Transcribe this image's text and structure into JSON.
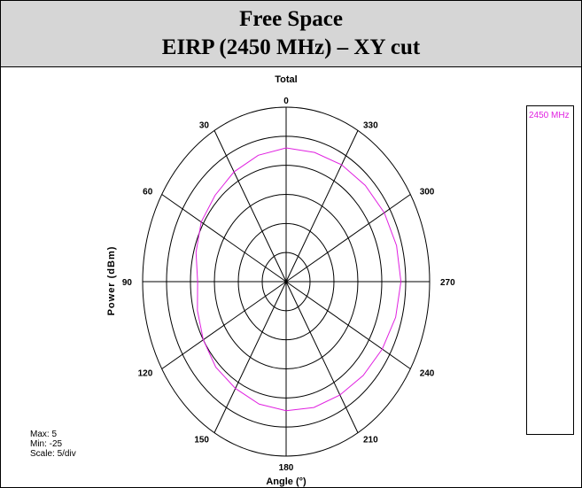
{
  "header": {
    "line1": "Free Space",
    "line2": "EIRP (2450 MHz) – XY cut"
  },
  "chart_data": {
    "type": "polar-line",
    "title": "Total",
    "xlabel": "Angle (°)",
    "ylabel": "Power (dBm)",
    "angle_ticks": [
      "0",
      "30",
      "60",
      "90",
      "120",
      "150",
      "180",
      "210",
      "240",
      "270",
      "300",
      "330"
    ],
    "angle_direction": "counterclockwise",
    "radial_range": [
      -25,
      5
    ],
    "radial_step": 5,
    "grid": true,
    "legend_position": "right",
    "series": [
      {
        "name": "2450 MHz",
        "color": "#e020e0",
        "angles": [
          0,
          15,
          30,
          45,
          60,
          75,
          90,
          105,
          120,
          135,
          150,
          165,
          180,
          195,
          210,
          225,
          240,
          255,
          270,
          285,
          300,
          315,
          330,
          345
        ],
        "values": [
          -2.0,
          -2.5,
          -3.2,
          -4.0,
          -4.5,
          -5.5,
          -6.5,
          -5.8,
          -5.0,
          -4.2,
          -3.8,
          -3.2,
          -2.8,
          -2.6,
          -2.5,
          -2.2,
          -1.8,
          -1.3,
          -1.0,
          -1.1,
          -1.3,
          -1.6,
          -1.8,
          -2.0
        ]
      }
    ]
  },
  "stats": {
    "max": "Max: 5",
    "min": "Min: -25",
    "scale": "Scale: 5/div"
  }
}
